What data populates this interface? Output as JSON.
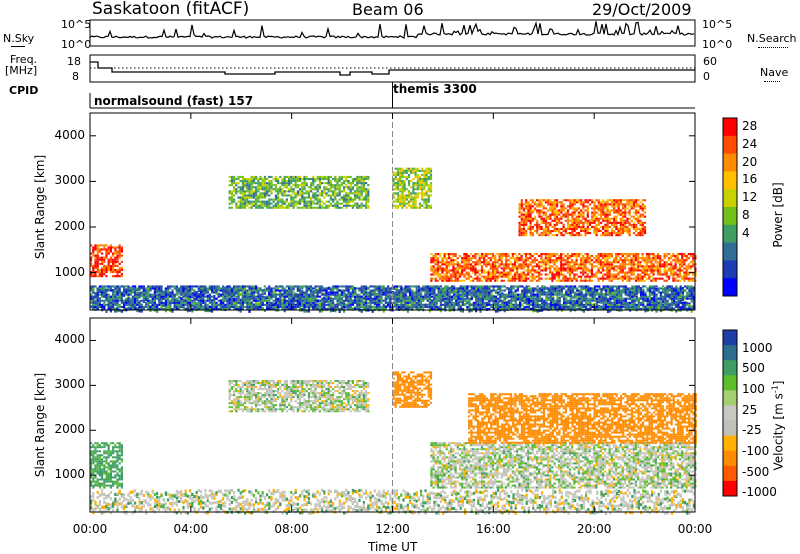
{
  "header": {
    "station": "Saskatoon (fitACF)",
    "beam": "Beam 06",
    "date": "29/Oct/2009"
  },
  "side_labels": {
    "nsky": "N.Sky",
    "freq_a": "Freq.",
    "freq_b": "[MHz]",
    "cpid": "CPID",
    "nsearch": "N.Search",
    "nave": "Nave",
    "sky_tick_hi": "10^5",
    "sky_tick_lo": "10^0",
    "search_tick_hi": "10^5",
    "search_tick_lo": "10^0",
    "freq_tick_hi": "18",
    "freq_tick_lo": "8",
    "nave_tick_hi": "60",
    "nave_tick_lo": "0"
  },
  "cpid": {
    "seg1": "normalsound (fast) 157",
    "seg2": "themis 3300",
    "switch_hour": 12
  },
  "axes": {
    "ylabel": "Slant Range [km]",
    "xlabel": "Time UT",
    "yticks": [
      "4000",
      "3000",
      "2000",
      "1000"
    ],
    "yticks_vel": [
      "4000",
      "3000",
      "2000",
      "1000"
    ],
    "xticks": [
      "00:00",
      "04:00",
      "08:00",
      "12:00",
      "16:00",
      "20:00",
      "00:00"
    ],
    "xlim_hours": [
      0,
      24
    ],
    "ylim_km": [
      180,
      4500
    ]
  },
  "power_bar": {
    "label": "Power [dB]",
    "ticks": [
      "28",
      "24",
      "20",
      "16",
      "12",
      "8",
      "4"
    ],
    "colors": [
      "#ff0000",
      "#ff4a00",
      "#ff8c00",
      "#ffc000",
      "#c8d200",
      "#72c018",
      "#3f9e63",
      "#2f6f96",
      "#1e3cb4",
      "#0000ff"
    ]
  },
  "velocity_bar": {
    "label": "Velocity [m s",
    "label_sup": "-1",
    "label_end": "]",
    "ticks": [
      "1000",
      "500",
      "100",
      "25",
      "-25",
      "-100",
      "-500",
      "-1000"
    ],
    "colors": [
      "#1f3fa8",
      "#2d6e8e",
      "#3f9e63",
      "#5cbf2a",
      "#a6cf70",
      "#c8c8c0",
      "#c0c0b8",
      "#ffb000",
      "#ff8c00",
      "#ff5a00",
      "#ff0000"
    ]
  },
  "chart_data": [
    {
      "type": "heatmap",
      "title": "Power [dB]",
      "xlabel": "Time UT",
      "ylabel": "Slant Range [km]",
      "xlim": [
        0,
        24
      ],
      "ylim": [
        180,
        4500
      ],
      "regions": [
        {
          "x": [
            0,
            1.3
          ],
          "y": [
            900,
            1600
          ],
          "value": 28
        },
        {
          "x": [
            0,
            24
          ],
          "y": [
            180,
            700
          ],
          "value": 8
        },
        {
          "x": [
            5.5,
            11
          ],
          "y": [
            2400,
            3100
          ],
          "value": 14
        },
        {
          "x": [
            12,
            13.5
          ],
          "y": [
            2400,
            3300
          ],
          "value": 16
        },
        {
          "x": [
            13.5,
            24
          ],
          "y": [
            800,
            1400
          ],
          "value": 26
        },
        {
          "x": [
            17,
            22
          ],
          "y": [
            1800,
            2600
          ],
          "value": 26
        }
      ]
    },
    {
      "type": "heatmap",
      "title": "Velocity [m s-1]",
      "xlabel": "Time UT",
      "ylabel": "Slant Range [km]",
      "xlim": [
        0,
        24
      ],
      "ylim": [
        180,
        4500
      ],
      "regions": [
        {
          "x": [
            0,
            1.3
          ],
          "y": [
            700,
            1700
          ],
          "value": 100
        },
        {
          "x": [
            5.5,
            11
          ],
          "y": [
            2400,
            3100
          ],
          "value": 0
        },
        {
          "x": [
            12,
            13.5
          ],
          "y": [
            2500,
            3300
          ],
          "value": -300
        },
        {
          "x": [
            13.5,
            24
          ],
          "y": [
            700,
            1700
          ],
          "value": 0
        },
        {
          "x": [
            15,
            24
          ],
          "y": [
            1700,
            2800
          ],
          "value": -400
        }
      ]
    }
  ]
}
